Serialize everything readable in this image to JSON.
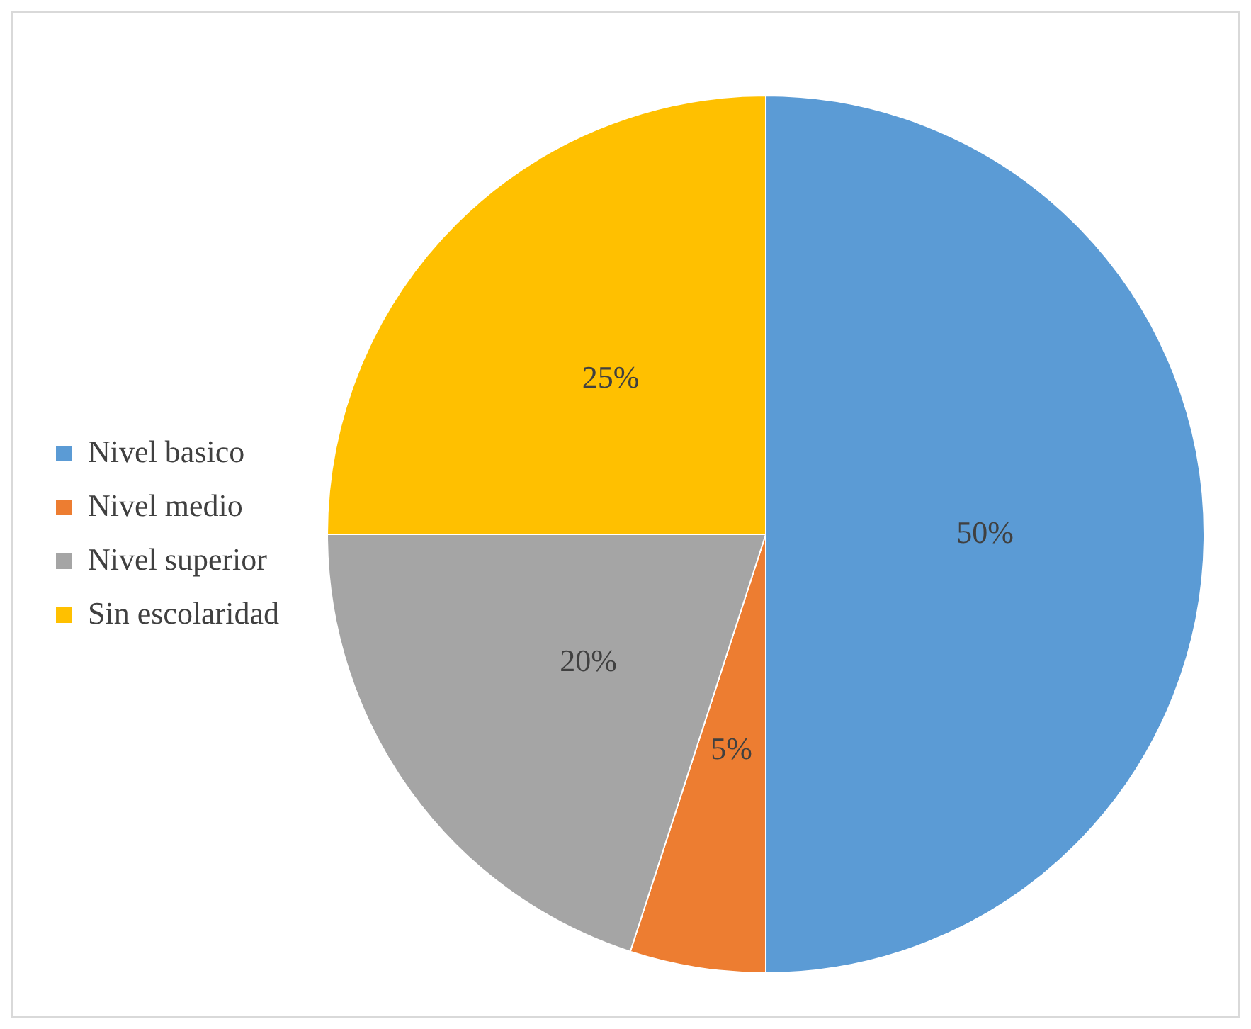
{
  "chart_data": {
    "type": "pie",
    "categories": [
      "Nivel basico",
      "Nivel medio",
      "Nivel superior",
      "Sin escolaridad"
    ],
    "values": [
      50,
      5,
      20,
      25
    ],
    "colors": [
      "#5b9bd5",
      "#ed7d31",
      "#a5a5a5",
      "#ffc000"
    ],
    "value_labels": [
      "50%",
      "5%",
      "20%",
      "25%"
    ],
    "legend": "left"
  }
}
